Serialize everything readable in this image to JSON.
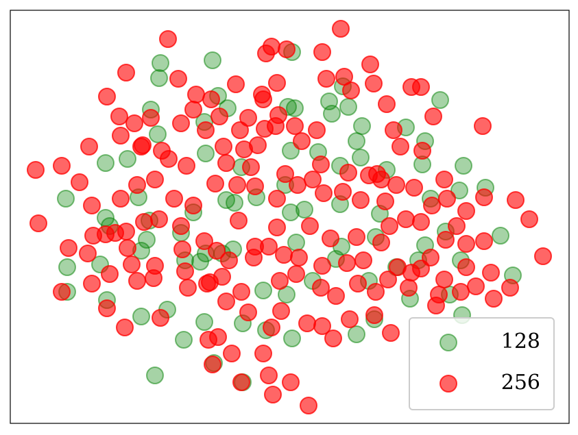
{
  "chart_data": {
    "type": "scatter",
    "xlim": [
      15,
      830
    ],
    "ylim": [
      2,
      605
    ],
    "legend": "lower right",
    "series": [
      {
        "name": "128",
        "color": "#008000",
        "alpha": 0.35,
        "x": [
          234,
          310,
          426,
          232,
          318,
          420,
          430,
          480,
          500,
          508,
          220,
          230,
          298,
          332,
          484,
          528,
          592,
          520,
          526,
          620,
          616,
          642,
          154,
          186,
          300,
          352,
          424,
          464,
          496,
          564,
          676,
          96,
          202,
          218,
          282,
          330,
          342,
          374,
          416,
          444,
          496,
          424,
          554,
          628,
          708,
          670,
          154,
          160,
          214,
          264,
          270,
          292,
          324,
          340,
          432,
          498,
          548,
          620,
          650,
          730,
          98,
          146,
          206,
          300,
          384,
          418,
          456,
          490,
          538,
          578,
          610,
          672,
          748,
          98,
          156,
          244,
          206,
          298,
          354,
          388,
          426,
          520,
          546,
          598,
          656,
          674,
          268,
          226,
          312,
          354
        ],
        "values": [
          528,
          532,
          544,
          506,
          480,
          464,
          462,
          472,
          494,
          464,
          460,
          424,
          442,
          462,
          454,
          436,
          434,
          414,
          390,
          414,
          380,
          474,
          382,
          388,
          396,
          376,
          400,
          398,
          378,
          372,
          378,
          330,
          332,
          298,
          310,
          328,
          324,
          332,
          350,
          314,
          322,
          310,
          308,
          330,
          346,
          342,
          302,
          290,
          270,
          280,
          240,
          238,
          250,
          256,
          266,
          260,
          274,
          262,
          282,
          276,
          230,
          234,
          254,
          250,
          196,
          190,
          210,
          242,
          210,
          230,
          240,
          240,
          218,
          194,
          182,
          168,
          158,
          150,
          148,
          138,
          126,
          132,
          154,
          184,
          190,
          160,
          124,
          72,
          90,
          62
        ]
      },
      {
        "name": "256",
        "color": "#ff0000",
        "alpha": 0.6,
        "x": [
          245,
          497,
          388,
          396,
          418,
          470,
          540,
          184,
          260,
          344,
          404,
          382,
          384,
          476,
          502,
          512,
          545,
          600,
          614,
          156,
          286,
          308,
          282,
          174,
          196,
          176,
          220,
          264,
          300,
          320,
          350,
          362,
          386,
          402,
          430,
          462,
          440,
          406,
          564,
          574,
          584,
          632,
          704,
          130,
          206,
          208,
          236,
          246,
          272,
          326,
          356,
          376,
          330,
          366,
          416,
          468,
          456,
          508,
          538,
          550,
          556,
          578,
          616,
          648,
          52,
          90,
          116,
          134,
          56,
          176,
          200,
          226,
          254,
          282,
          314,
          346,
          372,
          404,
          434,
          472,
          500,
          526,
          562,
          604,
          630,
          652,
          680,
          706,
          752,
          772,
          154,
          136,
          168,
          184,
          210,
          232,
          264,
          298,
          316,
          348,
          372,
          404,
          452,
          482,
          520,
          556,
          568,
          592,
          614,
          650,
          680,
          706,
          100,
          128,
          186,
          192,
          226,
          266,
          270,
          306,
          324,
          334,
          370,
          392,
          414,
          436,
          470,
          506,
          530,
          580,
          600,
          628,
          648,
          680,
          716,
          792,
          90,
          134,
          160,
          200,
          224,
          274,
          302,
          352,
          408,
          432,
          468,
          490,
          522,
          548,
          566,
          596,
          640,
          672,
          720,
          744,
          156,
          182,
          234,
          304,
          330,
          362,
          396,
          410,
          448,
          470,
          486,
          510,
          546,
          570,
          318,
          338,
          310,
          384,
          392,
          352,
          424,
          398,
          450,
          636,
          694,
          614,
          666
        ],
        "values": [
          563,
          578,
          542,
          552,
          548,
          544,
          526,
          514,
          505,
          497,
          499,
          482,
          475,
          505,
          508,
          488,
          498,
          493,
          493,
          479,
          482,
          475,
          460,
          450,
          440,
          422,
          448,
          440,
          430,
          450,
          430,
          448,
          432,
          436,
          436,
          430,
          414,
          452,
          468,
          430,
          406,
          450,
          436,
          406,
          406,
          408,
          400,
          388,
          378,
          406,
          402,
          408,
          382,
          376,
          366,
          380,
          358,
          368,
          364,
          366,
          358,
          350,
          400,
          358,
          372,
          378,
          354,
          320,
          294,
          330,
          350,
          358,
          330,
          320,
          352,
          350,
          348,
          330,
          350,
          338,
          340,
          328,
          326,
          346,
          320,
          330,
          312,
          332,
          328,
          300,
          278,
          276,
          280,
          282,
          296,
          300,
          290,
          268,
          254,
          298,
          260,
          288,
          290,
          272,
          274,
          266,
          290,
          300,
          296,
          270,
          264,
          268,
          258,
          250,
          258,
          234,
          232,
          256,
          224,
          208,
          216,
          240,
          244,
          260,
          248,
          244,
          232,
          236,
          240,
          230,
          222,
          244,
          212,
          230,
          222,
          246,
          194,
          206,
          220,
          210,
          214,
          200,
          206,
          194,
          210,
          220,
          200,
          188,
          206,
          194,
          212,
          200,
          190,
          194,
          184,
          200,
          170,
          142,
          156,
          124,
          180,
          164,
          142,
          166,
          148,
          144,
          126,
          154,
          160,
          134,
          128,
          104,
          88,
          104,
          72,
          62,
          62,
          44,
          28,
          174,
          202,
          228,
          290
        ]
      }
    ]
  }
}
